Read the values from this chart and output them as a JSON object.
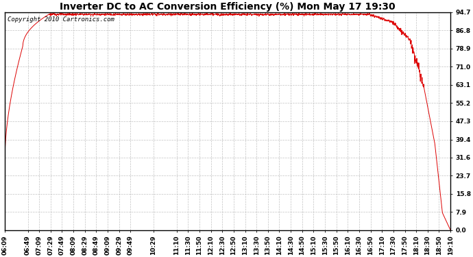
{
  "title": "Inverter DC to AC Conversion Efficiency (%) Mon May 17 19:30",
  "copyright_text": "Copyright 2010 Cartronics.com",
  "line_color": "#dd0000",
  "bg_color": "#ffffff",
  "plot_bg_color": "#ffffff",
  "grid_color": "#bbbbbb",
  "ytick_labels": [
    0.0,
    7.9,
    15.8,
    23.7,
    31.6,
    39.4,
    47.3,
    55.2,
    63.1,
    71.0,
    78.9,
    86.8,
    94.7
  ],
  "xtick_labels": [
    "06:09",
    "06:49",
    "07:09",
    "07:29",
    "07:49",
    "08:09",
    "08:29",
    "08:49",
    "09:09",
    "09:29",
    "09:49",
    "10:29",
    "11:10",
    "11:30",
    "11:50",
    "12:10",
    "12:30",
    "12:50",
    "13:10",
    "13:30",
    "13:50",
    "14:10",
    "14:30",
    "14:50",
    "15:10",
    "15:30",
    "15:50",
    "16:10",
    "16:30",
    "16:50",
    "17:10",
    "17:30",
    "17:50",
    "18:10",
    "18:30",
    "18:50",
    "19:10"
  ],
  "ymin": 0.0,
  "ymax": 94.7,
  "title_fontsize": 10,
  "tick_fontsize": 6.5,
  "copyright_fontsize": 6.5,
  "figwidth": 6.9,
  "figheight": 3.75,
  "dpi": 100
}
